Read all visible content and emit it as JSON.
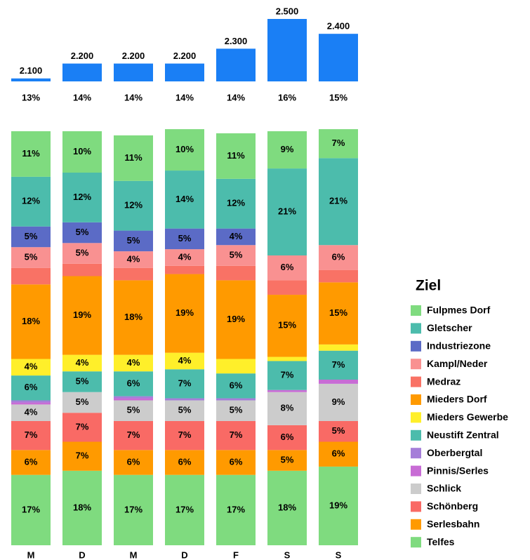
{
  "chart_data": [
    {
      "type": "bar",
      "color": "#1a7ff5",
      "values": [
        2100,
        2200,
        2200,
        2200,
        2300,
        2500,
        2400
      ],
      "value_labels": [
        "2.100",
        "2.200",
        "2.200",
        "2.200",
        "2.300",
        "2.500",
        "2.400"
      ],
      "ylim": [
        2080,
        2500
      ],
      "share_values": [
        13,
        14,
        14,
        14,
        14,
        16,
        15
      ],
      "share_labels": [
        "13%",
        "14%",
        "14%",
        "14%",
        "14%",
        "16%",
        "15%"
      ]
    },
    {
      "type": "stacked_bar",
      "legend_title": "Ziel",
      "legend": "right",
      "categories": [
        "M",
        "D",
        "M",
        "D",
        "F",
        "S",
        "S"
      ],
      "ylim": [
        0,
        100
      ],
      "series": [
        {
          "name": "Fulpmes Dorf",
          "color": "#7fdb7f",
          "values": [
            11,
            10,
            11,
            10,
            11,
            9,
            7
          ],
          "value_labels": [
            "11%",
            "10%",
            "11%",
            "10%",
            "11%",
            "9%",
            "7%"
          ]
        },
        {
          "name": "Gletscher",
          "color": "#4cbcac",
          "values": [
            12,
            12,
            12,
            14,
            12,
            21,
            21
          ],
          "value_labels": [
            "12%",
            "12%",
            "12%",
            "14%",
            "12%",
            "21%",
            "21%"
          ]
        },
        {
          "name": "Industriezone",
          "color": "#5b6bc6",
          "values": [
            5,
            5,
            5,
            5,
            4,
            0,
            0
          ],
          "value_labels": [
            "5%",
            "5%",
            "5%",
            "5%",
            "4%",
            null,
            null
          ]
        },
        {
          "name": "Kampl/Neder",
          "color": "#f99191",
          "values": [
            5,
            5,
            4,
            4,
            5,
            6,
            6
          ],
          "value_labels": [
            "5%",
            "5%",
            "4%",
            "4%",
            "5%",
            "6%",
            "6%"
          ]
        },
        {
          "name": "Medraz",
          "color": "#f97265",
          "values": [
            4,
            3,
            3,
            2,
            3.5,
            3.5,
            3
          ],
          "value_labels": [
            null,
            null,
            null,
            null,
            null,
            null,
            null
          ]
        },
        {
          "name": "Mieders Dorf",
          "color": "#ff9a00",
          "values": [
            18,
            19,
            18,
            19,
            19,
            15,
            15
          ],
          "value_labels": [
            "18%",
            "19%",
            "18%",
            "19%",
            "19%",
            "15%",
            "15%"
          ]
        },
        {
          "name": "Mieders Gewerbe",
          "color": "#ffef2a",
          "values": [
            4,
            4,
            4,
            4,
            3.5,
            1,
            1.5
          ],
          "value_labels": [
            "4%",
            "4%",
            "4%",
            "4%",
            null,
            null,
            null
          ]
        },
        {
          "name": "Neustift Zentral",
          "color": "#4cbcac",
          "values": [
            6,
            5,
            6,
            7,
            6,
            7,
            7
          ],
          "value_labels": [
            "6%",
            "5%",
            "6%",
            "7%",
            "6%",
            "7%",
            "7%"
          ]
        },
        {
          "name": "Oberbergtal",
          "color": "#a57ed9",
          "values": [
            0.5,
            0,
            0.5,
            0.5,
            0.5,
            0,
            0
          ],
          "value_labels": [
            null,
            null,
            null,
            null,
            null,
            null,
            null
          ]
        },
        {
          "name": "Pinnis/Serles",
          "color": "#c86cd5",
          "values": [
            0.5,
            0,
            0.5,
            0,
            0,
            0.5,
            1
          ],
          "value_labels": [
            null,
            null,
            null,
            null,
            null,
            null,
            null
          ]
        },
        {
          "name": "Schlick",
          "color": "#cccccc",
          "values": [
            4,
            5,
            5,
            5,
            5,
            8,
            9
          ],
          "value_labels": [
            "4%",
            "5%",
            "5%",
            "5%",
            "5%",
            "8%",
            "9%"
          ]
        },
        {
          "name": "Schönberg",
          "color": "#f96a65",
          "values": [
            7,
            7,
            7,
            7,
            7,
            6,
            5
          ],
          "value_labels": [
            "7%",
            "7%",
            "7%",
            "7%",
            "7%",
            "6%",
            "5%"
          ]
        },
        {
          "name": "Serlesbahn",
          "color": "#ff9a00",
          "values": [
            6,
            7,
            6,
            6,
            6,
            5,
            6
          ],
          "value_labels": [
            "6%",
            "7%",
            "6%",
            "6%",
            "6%",
            "5%",
            "6%"
          ]
        },
        {
          "name": "Telfes",
          "color": "#7fdb7f",
          "values": [
            17,
            18,
            17,
            17,
            17,
            18,
            19
          ],
          "value_labels": [
            "17%",
            "18%",
            "17%",
            "17%",
            "17%",
            "18%",
            "19%"
          ]
        }
      ]
    }
  ]
}
